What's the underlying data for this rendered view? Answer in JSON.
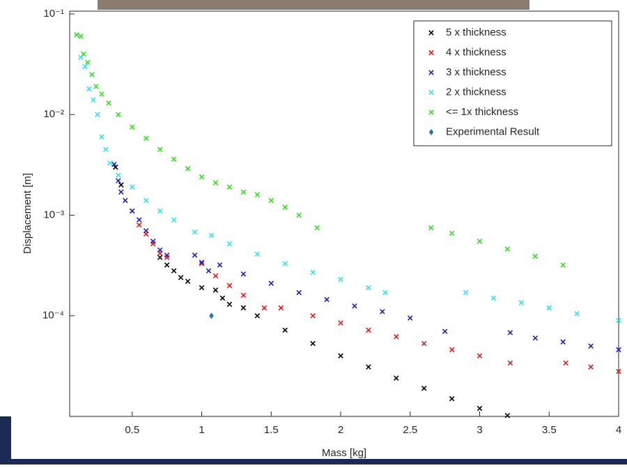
{
  "chart_data": {
    "type": "scatter",
    "yscale": "log",
    "grid": false,
    "legend": "upper right",
    "xlabel": "Mass [kg]",
    "ylabel": "Displacement [m]",
    "xlim": [
      0.05,
      4
    ],
    "xticks": [
      0.5,
      1,
      1.5,
      2,
      2.5,
      3,
      3.5,
      4
    ],
    "ylim": [
      1e-05,
      0.1
    ],
    "yticks": [
      {
        "value": 0.0001,
        "label": "10⁻⁴"
      },
      {
        "value": 0.001,
        "label": "10⁻³"
      },
      {
        "value": 0.01,
        "label": "10⁻²"
      },
      {
        "value": 0.1,
        "label": "10⁻¹"
      }
    ],
    "series": [
      {
        "name": "5 x thickness",
        "color": "#000000",
        "marker": "x",
        "x": [
          0.38,
          0.42,
          0.7,
          0.75,
          0.8,
          0.85,
          0.9,
          1.0,
          1.1,
          1.15,
          1.2,
          1.3,
          1.4,
          1.6,
          1.8,
          2.0,
          2.2,
          2.4,
          2.6,
          2.8,
          3.0,
          3.2
        ],
        "values": [
          0.003,
          0.002,
          0.00038,
          0.00032,
          0.00028,
          0.00024,
          0.00022,
          0.00019,
          0.00018,
          0.00015,
          0.00013,
          0.00012,
          0.0001,
          7.2e-05,
          5.3e-05,
          4e-05,
          3.1e-05,
          2.4e-05,
          1.9e-05,
          1.5e-05,
          1.2e-05,
          1.02e-05
        ]
      },
      {
        "name": "4 x thickness",
        "color": "#e41a1c",
        "marker": "x",
        "x": [
          0.5,
          0.55,
          0.6,
          0.65,
          0.7,
          0.75,
          1.0,
          1.1,
          1.2,
          1.3,
          1.45,
          1.57,
          1.8,
          2.0,
          2.2,
          2.4,
          2.6,
          2.8,
          3.0,
          3.22,
          3.62,
          3.8,
          4.0
        ],
        "values": [
          0.0011,
          0.0008,
          0.00065,
          0.00052,
          0.00042,
          0.00038,
          0.00033,
          0.00025,
          0.0002,
          0.00016,
          0.00012,
          0.00012,
          0.0001,
          8.5e-05,
          7.2e-05,
          6.2e-05,
          5.3e-05,
          4.6e-05,
          4e-05,
          3.4e-05,
          3.4e-05,
          3.1e-05,
          2.8e-05
        ]
      },
      {
        "name": "3 x thickness",
        "color": "#1f1fb4",
        "marker": "x",
        "x": [
          0.37,
          0.4,
          0.42,
          0.45,
          0.5,
          0.55,
          0.6,
          0.65,
          0.7,
          0.75,
          0.95,
          1.0,
          1.05,
          1.13,
          1.3,
          1.5,
          1.7,
          1.9,
          2.1,
          2.3,
          2.5,
          2.75,
          3.22,
          3.4,
          3.6,
          3.8,
          4.0
        ],
        "values": [
          0.0032,
          0.0022,
          0.0017,
          0.0014,
          0.0011,
          0.0009,
          0.0007,
          0.00055,
          0.00045,
          0.0004,
          0.0004,
          0.00034,
          0.00028,
          0.00032,
          0.00026,
          0.00021,
          0.00017,
          0.000145,
          0.000125,
          0.00011,
          9.5e-05,
          7e-05,
          6.8e-05,
          6e-05,
          5.5e-05,
          5e-05,
          4.6e-05
        ]
      },
      {
        "name": "2 x thickness",
        "color": "#33e0f0",
        "marker": "x",
        "x": [
          0.13,
          0.16,
          0.19,
          0.22,
          0.25,
          0.28,
          0.31,
          0.34,
          0.4,
          0.5,
          0.6,
          0.7,
          0.8,
          0.95,
          1.07,
          1.2,
          1.4,
          1.6,
          1.8,
          2.0,
          2.2,
          2.32,
          2.9,
          3.1,
          3.3,
          3.5,
          3.7,
          4.0
        ],
        "values": [
          0.037,
          0.03,
          0.018,
          0.014,
          0.01,
          0.006,
          0.0045,
          0.0033,
          0.0025,
          0.0019,
          0.0014,
          0.0011,
          0.0009,
          0.00068,
          0.00063,
          0.00052,
          0.00041,
          0.00033,
          0.00027,
          0.00023,
          0.00019,
          0.00017,
          0.00017,
          0.00015,
          0.000135,
          0.00012,
          0.000105,
          9e-05
        ]
      },
      {
        "name": "<= 1x thickness",
        "color": "#33dd22",
        "marker": "x",
        "x": [
          0.1,
          0.13,
          0.15,
          0.18,
          0.21,
          0.24,
          0.28,
          0.33,
          0.4,
          0.5,
          0.6,
          0.7,
          0.8,
          0.9,
          1.0,
          1.1,
          1.2,
          1.3,
          1.4,
          1.5,
          1.6,
          1.7,
          1.83,
          2.65,
          2.8,
          3.0,
          3.2,
          3.4,
          3.6
        ],
        "values": [
          0.062,
          0.06,
          0.04,
          0.033,
          0.025,
          0.019,
          0.016,
          0.013,
          0.01,
          0.0075,
          0.0058,
          0.0045,
          0.0036,
          0.0029,
          0.0024,
          0.0021,
          0.0019,
          0.0017,
          0.0016,
          0.0014,
          0.0012,
          0.001,
          0.00075,
          0.00075,
          0.00066,
          0.00055,
          0.00046,
          0.00039,
          0.00032
        ]
      },
      {
        "name": "Experimental Result",
        "color": "#1f77b4",
        "marker": "diamond",
        "x": [
          1.07
        ],
        "values": [
          0.0001
        ]
      }
    ]
  }
}
